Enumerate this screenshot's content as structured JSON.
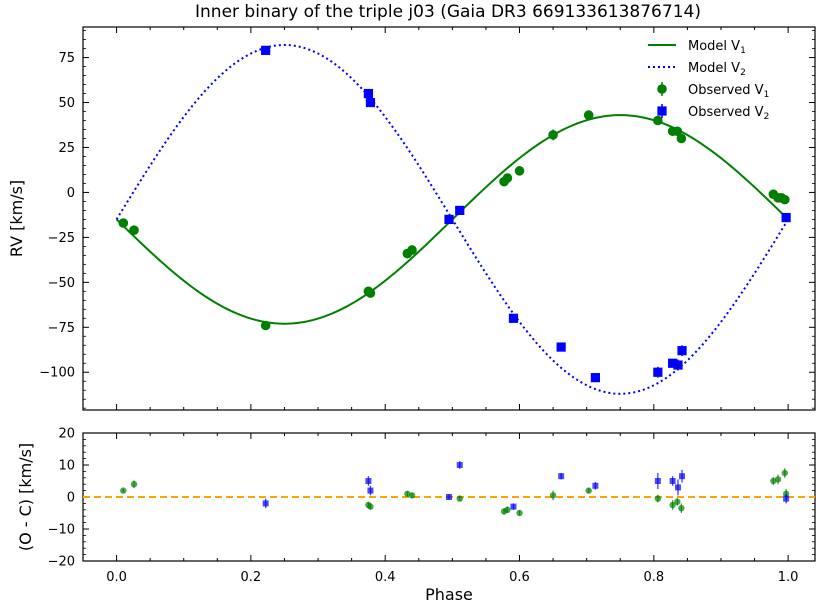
{
  "title": "Inner binary of the triple j03 (Gaia DR3 669133613876714)",
  "colors": {
    "v1": "#008000",
    "v2": "#0000ff",
    "zero_line": "#ffa500"
  },
  "chart_data": [
    {
      "type": "line",
      "panel": "rv",
      "title": "Inner binary of the triple j03 (Gaia DR3 669133613876714)",
      "xlabel": "",
      "ylabel": "RV [km/s]",
      "xlim": [
        -0.05,
        1.04
      ],
      "ylim": [
        -121,
        92
      ],
      "xticks": [
        0.0,
        0.2,
        0.4,
        0.6,
        0.8,
        1.0
      ],
      "yticks": [
        -100,
        -75,
        -50,
        -25,
        0,
        25,
        50,
        75
      ],
      "ytick_labels": [
        "−100",
        "−75",
        "−50",
        "−25",
        "0",
        "25",
        "50",
        "75"
      ],
      "legend_position": "top-right",
      "legend": [
        {
          "base": "Model V",
          "sub": "1",
          "style": "solid-line",
          "color": "#008000"
        },
        {
          "base": "Model V",
          "sub": "2",
          "style": "dotted-line",
          "color": "#0000ff"
        },
        {
          "base": "Observed V",
          "sub": "1",
          "style": "circle",
          "color": "#008000"
        },
        {
          "base": "Observed V",
          "sub": "2",
          "style": "square",
          "color": "#0000ff"
        }
      ],
      "model": {
        "gamma": -15,
        "k1": 58,
        "k2": 97,
        "peri_phase": 0.0
      },
      "series": [
        {
          "name": "Observed V1",
          "marker": "circle",
          "color": "#008000",
          "x": [
            0.01,
            0.026,
            0.222,
            0.375,
            0.378,
            0.433,
            0.44,
            0.577,
            0.582,
            0.6,
            0.65,
            0.703,
            0.806,
            0.828,
            0.835,
            0.841,
            0.978,
            0.985,
            0.99,
            0.995
          ],
          "y": [
            -17,
            -21,
            -74,
            -55,
            -56,
            -34,
            -32,
            6,
            8,
            12,
            32,
            43,
            40,
            34,
            34,
            30,
            -1,
            -3,
            -3,
            -4
          ],
          "err": [
            1,
            1,
            2,
            1,
            1,
            1,
            1,
            1,
            1,
            1,
            3,
            1,
            1,
            1,
            1,
            1,
            1,
            2,
            1,
            1
          ]
        },
        {
          "name": "Observed V2",
          "marker": "square",
          "color": "#0000ff",
          "x": [
            0.222,
            0.375,
            0.378,
            0.495,
            0.511,
            0.591,
            0.662,
            0.713,
            0.806,
            0.828,
            0.836,
            0.842,
            0.997
          ],
          "y": [
            79,
            55,
            50,
            -15,
            -10,
            -70,
            -86,
            -103,
            -100,
            -95,
            -96,
            -88,
            -14
          ],
          "err": [
            2,
            2,
            2,
            1,
            1,
            2,
            2,
            2,
            3,
            2,
            3,
            3,
            2
          ]
        }
      ]
    },
    {
      "type": "scatter",
      "panel": "residuals",
      "xlabel": "Phase",
      "ylabel": "(O - C) [km/s]",
      "xlim": [
        -0.05,
        1.04
      ],
      "ylim": [
        -20,
        20
      ],
      "xticks": [
        0.0,
        0.2,
        0.4,
        0.6,
        0.8,
        1.0
      ],
      "xtick_labels": [
        "0.0",
        "0.2",
        "0.4",
        "0.6",
        "0.8",
        "1.0"
      ],
      "yticks": [
        -20,
        -10,
        0,
        10,
        20
      ],
      "ytick_labels": [
        "−20",
        "−10",
        "0",
        "10",
        "20"
      ],
      "zero_line": 0,
      "series": [
        {
          "name": "Residuals V1",
          "marker": "circle",
          "color": "#008000",
          "x": [
            0.01,
            0.026,
            0.375,
            0.378,
            0.433,
            0.44,
            0.511,
            0.577,
            0.582,
            0.6,
            0.65,
            0.703,
            0.806,
            0.828,
            0.835,
            0.841,
            0.978,
            0.985,
            0.995,
            0.997
          ],
          "y": [
            2,
            4,
            -2.5,
            -3,
            1,
            0.5,
            -0.5,
            -4.5,
            -4,
            -5,
            0.5,
            2,
            -0.5,
            -2.5,
            -1.5,
            -3.5,
            5,
            5.5,
            7.5,
            1
          ],
          "err": [
            0.6,
            1.2,
            1,
            1,
            0.8,
            0.8,
            0.8,
            1,
            1,
            0.8,
            1.5,
            0.8,
            1.2,
            1.5,
            1.2,
            1.5,
            1.2,
            1.5,
            1.5,
            1.5
          ]
        },
        {
          "name": "Residuals V2",
          "marker": "square",
          "color": "#0000ff",
          "x": [
            0.222,
            0.375,
            0.378,
            0.495,
            0.511,
            0.591,
            0.662,
            0.713,
            0.806,
            0.828,
            0.836,
            0.842,
            0.997
          ],
          "y": [
            -2,
            5,
            2,
            0,
            10,
            -3,
            6.5,
            3.5,
            5,
            5,
            3,
            6.5,
            -0.5
          ],
          "err": [
            1.5,
            1.5,
            1.5,
            0.8,
            1.2,
            1,
            1,
            1.2,
            2.5,
            1.5,
            2.5,
            2,
            1.5
          ]
        }
      ]
    }
  ]
}
